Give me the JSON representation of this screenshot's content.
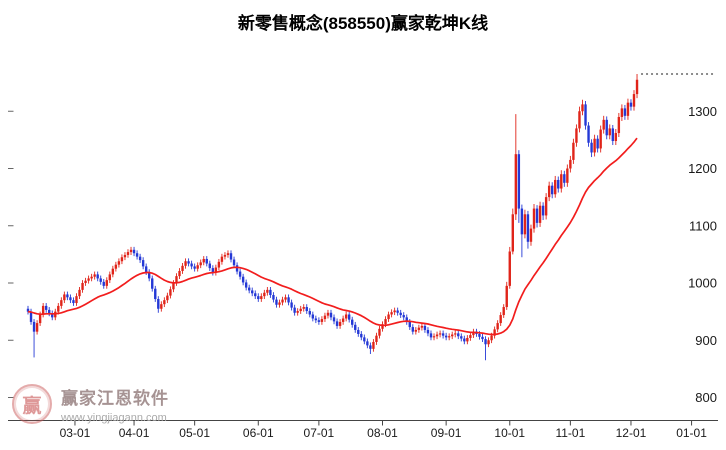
{
  "title": "新零售概念(858550)赢家乾坤K线",
  "watermark": {
    "brand": "赢家江恩软件",
    "url": "www.yingjiagann.com",
    "seal_char": "赢"
  },
  "chart_data": {
    "type": "candlestick",
    "title": "新零售概念(858550)赢家乾坤K线",
    "symbol": "858550",
    "ylim": [
      760,
      1390
    ],
    "xlabel": "",
    "ylabel": "",
    "grid": false,
    "legend": "none",
    "ma_period": 25,
    "colors": {
      "up": "#e02419",
      "down": "#2438d6",
      "ma": "#f21d1d",
      "axis": "#444444"
    },
    "y_axis": {
      "labels": [
        "1300",
        "1200",
        "1100",
        "1000",
        "900",
        "800"
      ],
      "values": [
        1300,
        1200,
        1100,
        1000,
        900,
        800
      ]
    },
    "x_axis": {
      "labels": [
        "03-01",
        "04-01",
        "05-01",
        "06-01",
        "07-01",
        "08-01",
        "09-01",
        "10-01",
        "11-01",
        "12-01",
        "01-01"
      ],
      "month_start_indices": [
        15.5,
        35,
        55,
        76,
        96,
        117,
        138,
        159,
        179,
        199,
        219
      ]
    },
    "annotation": {
      "type": "dotted-horizontal-line",
      "price": 1365
    },
    "candles": [
      [
        955,
        960,
        945,
        950
      ],
      [
        950,
        955,
        927,
        932
      ],
      [
        932,
        937,
        870,
        915
      ],
      [
        915,
        935,
        910,
        930
      ],
      [
        930,
        950,
        925,
        945
      ],
      [
        945,
        965,
        940,
        960
      ],
      [
        960,
        965,
        948,
        953
      ],
      [
        953,
        958,
        942,
        947
      ],
      [
        947,
        952,
        935,
        940
      ],
      [
        940,
        955,
        935,
        950
      ],
      [
        950,
        965,
        945,
        960
      ],
      [
        960,
        975,
        955,
        970
      ],
      [
        970,
        985,
        965,
        980
      ],
      [
        980,
        985,
        970,
        975
      ],
      [
        975,
        980,
        965,
        970
      ],
      [
        970,
        975,
        960,
        965
      ],
      [
        965,
        982,
        960,
        977
      ],
      [
        977,
        993,
        972,
        988
      ],
      [
        988,
        1005,
        983,
        1000
      ],
      [
        1000,
        1009,
        995,
        1004
      ],
      [
        1004,
        1013,
        999,
        1008
      ],
      [
        1008,
        1016,
        1003,
        1011
      ],
      [
        1011,
        1020,
        1006,
        1015
      ],
      [
        1015,
        1020,
        1003,
        1008
      ],
      [
        1008,
        1013,
        997,
        1002
      ],
      [
        1002,
        1007,
        990,
        995
      ],
      [
        995,
        1010,
        990,
        1005
      ],
      [
        1005,
        1020,
        1000,
        1015
      ],
      [
        1015,
        1030,
        1010,
        1025
      ],
      [
        1025,
        1037,
        1020,
        1032
      ],
      [
        1032,
        1043,
        1027,
        1038
      ],
      [
        1038,
        1050,
        1033,
        1045
      ],
      [
        1045,
        1054,
        1040,
        1049
      ],
      [
        1049,
        1059,
        1044,
        1054
      ],
      [
        1054,
        1063,
        1049,
        1058
      ],
      [
        1058,
        1063,
        1047,
        1052
      ],
      [
        1052,
        1057,
        1041,
        1046
      ],
      [
        1046,
        1051,
        1035,
        1040
      ],
      [
        1040,
        1045,
        1024,
        1029
      ],
      [
        1029,
        1034,
        1014,
        1019
      ],
      [
        1019,
        1024,
        1003,
        1008
      ],
      [
        1008,
        1013,
        985,
        990
      ],
      [
        990,
        995,
        967,
        972
      ],
      [
        972,
        977,
        948,
        955
      ],
      [
        955,
        968,
        950,
        963
      ],
      [
        963,
        975,
        958,
        970
      ],
      [
        970,
        983,
        965,
        978
      ],
      [
        978,
        994,
        973,
        989
      ],
      [
        989,
        1005,
        984,
        1000
      ],
      [
        1000,
        1017,
        995,
        1012
      ],
      [
        1012,
        1026,
        1007,
        1021
      ],
      [
        1021,
        1035,
        1016,
        1030
      ],
      [
        1030,
        1043,
        1025,
        1038
      ],
      [
        1038,
        1043,
        1029,
        1034
      ],
      [
        1034,
        1039,
        1024,
        1029
      ],
      [
        1029,
        1034,
        1020,
        1025
      ],
      [
        1025,
        1036,
        1020,
        1031
      ],
      [
        1031,
        1041,
        1026,
        1036
      ],
      [
        1036,
        1047,
        1031,
        1042
      ],
      [
        1042,
        1047,
        1029,
        1034
      ],
      [
        1034,
        1039,
        1021,
        1026
      ],
      [
        1026,
        1031,
        1013,
        1018
      ],
      [
        1018,
        1032,
        1013,
        1027
      ],
      [
        1027,
        1042,
        1022,
        1037
      ],
      [
        1037,
        1051,
        1032,
        1046
      ],
      [
        1046,
        1054,
        1041,
        1049
      ],
      [
        1049,
        1057,
        1044,
        1052
      ],
      [
        1052,
        1057,
        1036,
        1041
      ],
      [
        1041,
        1046,
        1026,
        1031
      ],
      [
        1031,
        1036,
        1015,
        1020
      ],
      [
        1020,
        1025,
        1006,
        1011
      ],
      [
        1011,
        1016,
        996,
        1001
      ],
      [
        1001,
        1006,
        987,
        992
      ],
      [
        992,
        997,
        982,
        987
      ],
      [
        987,
        992,
        977,
        982
      ],
      [
        982,
        987,
        972,
        977
      ],
      [
        977,
        982,
        967,
        972
      ],
      [
        972,
        982,
        967,
        977
      ],
      [
        977,
        988,
        972,
        983
      ],
      [
        983,
        993,
        978,
        988
      ],
      [
        988,
        993,
        974,
        979
      ],
      [
        979,
        984,
        966,
        971
      ],
      [
        971,
        976,
        957,
        962
      ],
      [
        962,
        971,
        957,
        966
      ],
      [
        966,
        976,
        961,
        971
      ],
      [
        971,
        980,
        966,
        975
      ],
      [
        975,
        980,
        961,
        966
      ],
      [
        966,
        971,
        952,
        957
      ],
      [
        957,
        962,
        943,
        948
      ],
      [
        948,
        956,
        943,
        951
      ],
      [
        951,
        960,
        946,
        955
      ],
      [
        955,
        963,
        950,
        958
      ],
      [
        958,
        963,
        946,
        951
      ],
      [
        951,
        956,
        940,
        945
      ],
      [
        945,
        950,
        933,
        938
      ],
      [
        938,
        943,
        930,
        935
      ],
      [
        935,
        940,
        927,
        932
      ],
      [
        932,
        942,
        927,
        937
      ],
      [
        937,
        948,
        932,
        943
      ],
      [
        943,
        953,
        938,
        948
      ],
      [
        948,
        953,
        935,
        940
      ],
      [
        940,
        945,
        928,
        933
      ],
      [
        933,
        938,
        920,
        925
      ],
      [
        925,
        937,
        920,
        932
      ],
      [
        932,
        943,
        927,
        938
      ],
      [
        938,
        950,
        933,
        945
      ],
      [
        945,
        950,
        931,
        936
      ],
      [
        936,
        941,
        922,
        927
      ],
      [
        927,
        932,
        913,
        918
      ],
      [
        918,
        923,
        906,
        911
      ],
      [
        911,
        916,
        900,
        905
      ],
      [
        905,
        910,
        893,
        898
      ],
      [
        898,
        903,
        886,
        891
      ],
      [
        891,
        896,
        876,
        885
      ],
      [
        885,
        902,
        880,
        897
      ],
      [
        897,
        913,
        892,
        908
      ],
      [
        908,
        925,
        903,
        920
      ],
      [
        920,
        933,
        915,
        928
      ],
      [
        928,
        942,
        923,
        937
      ],
      [
        937,
        950,
        932,
        945
      ],
      [
        945,
        954,
        940,
        949
      ],
      [
        949,
        957,
        944,
        952
      ],
      [
        952,
        957,
        943,
        948
      ],
      [
        948,
        953,
        939,
        944
      ],
      [
        944,
        949,
        935,
        940
      ],
      [
        940,
        945,
        927,
        932
      ],
      [
        932,
        937,
        918,
        923
      ],
      [
        923,
        928,
        910,
        915
      ],
      [
        915,
        923,
        910,
        918
      ],
      [
        918,
        927,
        913,
        922
      ],
      [
        922,
        930,
        917,
        925
      ],
      [
        925,
        930,
        913,
        918
      ],
      [
        918,
        923,
        907,
        912
      ],
      [
        912,
        917,
        900,
        905
      ],
      [
        905,
        912,
        900,
        907
      ],
      [
        907,
        915,
        902,
        910
      ],
      [
        910,
        917,
        905,
        912
      ],
      [
        912,
        917,
        903,
        908
      ],
      [
        908,
        913,
        900,
        905
      ],
      [
        905,
        912,
        900,
        907
      ],
      [
        907,
        915,
        902,
        910
      ],
      [
        910,
        917,
        905,
        912
      ],
      [
        912,
        917,
        902,
        907
      ],
      [
        907,
        912,
        898,
        903
      ],
      [
        903,
        908,
        893,
        898
      ],
      [
        898,
        909,
        893,
        904
      ],
      [
        904,
        914,
        899,
        909
      ],
      [
        909,
        920,
        904,
        915
      ],
      [
        915,
        920,
        906,
        911
      ],
      [
        911,
        916,
        901,
        906
      ],
      [
        906,
        911,
        897,
        902
      ],
      [
        902,
        907,
        865,
        893
      ],
      [
        893,
        905,
        888,
        900
      ],
      [
        900,
        913,
        895,
        908
      ],
      [
        908,
        924,
        903,
        919
      ],
      [
        919,
        935,
        914,
        930
      ],
      [
        930,
        949,
        925,
        944
      ],
      [
        944,
        963,
        939,
        958
      ],
      [
        958,
        1002,
        953,
        995
      ],
      [
        995,
        1063,
        990,
        1055
      ],
      [
        1055,
        1130,
        1050,
        1120
      ],
      [
        1120,
        1295,
        1110,
        1225
      ],
      [
        1225,
        1232,
        1105,
        1130
      ],
      [
        1130,
        1137,
        1045,
        1085
      ],
      [
        1085,
        1128,
        1078,
        1120
      ],
      [
        1120,
        1126,
        1060,
        1072
      ],
      [
        1072,
        1102,
        1065,
        1095
      ],
      [
        1095,
        1138,
        1088,
        1130
      ],
      [
        1130,
        1136,
        1097,
        1105
      ],
      [
        1105,
        1142,
        1098,
        1135
      ],
      [
        1135,
        1141,
        1110,
        1118
      ],
      [
        1118,
        1157,
        1111,
        1150
      ],
      [
        1150,
        1177,
        1143,
        1170
      ],
      [
        1170,
        1176,
        1148,
        1155
      ],
      [
        1155,
        1187,
        1149,
        1180
      ],
      [
        1180,
        1186,
        1158,
        1165
      ],
      [
        1165,
        1197,
        1158,
        1190
      ],
      [
        1190,
        1196,
        1168,
        1175
      ],
      [
        1175,
        1207,
        1168,
        1200
      ],
      [
        1200,
        1222,
        1193,
        1215
      ],
      [
        1215,
        1252,
        1208,
        1245
      ],
      [
        1245,
        1277,
        1238,
        1270
      ],
      [
        1270,
        1308,
        1263,
        1300
      ],
      [
        1300,
        1320,
        1293,
        1312
      ],
      [
        1312,
        1318,
        1268,
        1275
      ],
      [
        1275,
        1281,
        1238,
        1245
      ],
      [
        1245,
        1251,
        1220,
        1228
      ],
      [
        1228,
        1259,
        1221,
        1252
      ],
      [
        1252,
        1258,
        1228,
        1235
      ],
      [
        1235,
        1275,
        1228,
        1268
      ],
      [
        1268,
        1292,
        1261,
        1285
      ],
      [
        1285,
        1291,
        1251,
        1258
      ],
      [
        1258,
        1277,
        1251,
        1270
      ],
      [
        1270,
        1276,
        1241,
        1248
      ],
      [
        1248,
        1269,
        1241,
        1262
      ],
      [
        1262,
        1297,
        1255,
        1290
      ],
      [
        1290,
        1312,
        1283,
        1305
      ],
      [
        1305,
        1311,
        1285,
        1292
      ],
      [
        1292,
        1322,
        1285,
        1315
      ],
      [
        1315,
        1321,
        1301,
        1308
      ],
      [
        1308,
        1337,
        1301,
        1330
      ],
      [
        1330,
        1365,
        1323,
        1355
      ]
    ]
  }
}
